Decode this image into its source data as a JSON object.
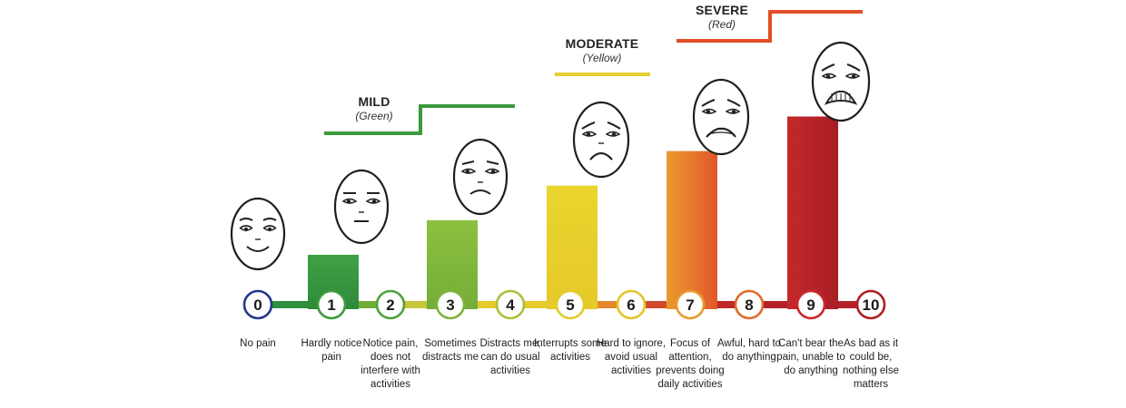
{
  "scale": {
    "levels": [
      {
        "number": "0",
        "description": "No pain",
        "ring_color": "#24378c",
        "face": "smile"
      },
      {
        "number": "1",
        "description": "Hardly notice pain",
        "ring_color": "#3f9a3a",
        "bar_value": 1,
        "bar_color": "#3e9c3b",
        "face": "neutral"
      },
      {
        "number": "2",
        "description": "Notice pain, does not interfere with activities",
        "ring_color": "#4fa23c"
      },
      {
        "number": "3",
        "description": "Sometimes distracts me",
        "ring_color": "#7db43a",
        "bar_value": 2,
        "bar_color": "#86ba3c",
        "face": "mild"
      },
      {
        "number": "4",
        "description": "Distracts me, can do usual activities",
        "ring_color": "#a8c23a"
      },
      {
        "number": "5",
        "description": "Interrupts some activities",
        "ring_color": "#e1cc2a",
        "bar_value": 3,
        "bar_color": "#e7d02a",
        "face": "sad"
      },
      {
        "number": "6",
        "description": "Hard to ignore, avoid usual activities",
        "ring_color": "#e3c52b"
      },
      {
        "number": "7",
        "description": "Focus of attention, prevents doing daily activities",
        "ring_color": "#e89a2d",
        "bar_value": 4,
        "bar_color": "#e8872d",
        "face": "worried"
      },
      {
        "number": "8",
        "description": "Awful, hard to do anything",
        "ring_color": "#e26a2c"
      },
      {
        "number": "9",
        "description": "Can't bear the pain, unable to do anything",
        "ring_color": "#c9282b",
        "bar_value": 5,
        "bar_color": "#c0272a",
        "face": "distress"
      },
      {
        "number": "10",
        "description": "As bad as it could be, nothing else matters",
        "ring_color": "#b01f24"
      }
    ],
    "categories": [
      {
        "name": "MILD",
        "color_name": "(Green)",
        "color": "#3a9a3c"
      },
      {
        "name": "MODERATE",
        "color_name": "(Yellow)",
        "color": "#e3d02e"
      },
      {
        "name": "SEVERE",
        "color_name": "(Red)",
        "color": "#dd4426"
      }
    ],
    "line_colors": [
      "#2e8f3e",
      "#72ad3a",
      "#c8c63a",
      "#e6c92b",
      "#e6c92b",
      "#e58a2c",
      "#d04a2b",
      "#c0272a",
      "#b32228",
      "#b32228"
    ]
  }
}
